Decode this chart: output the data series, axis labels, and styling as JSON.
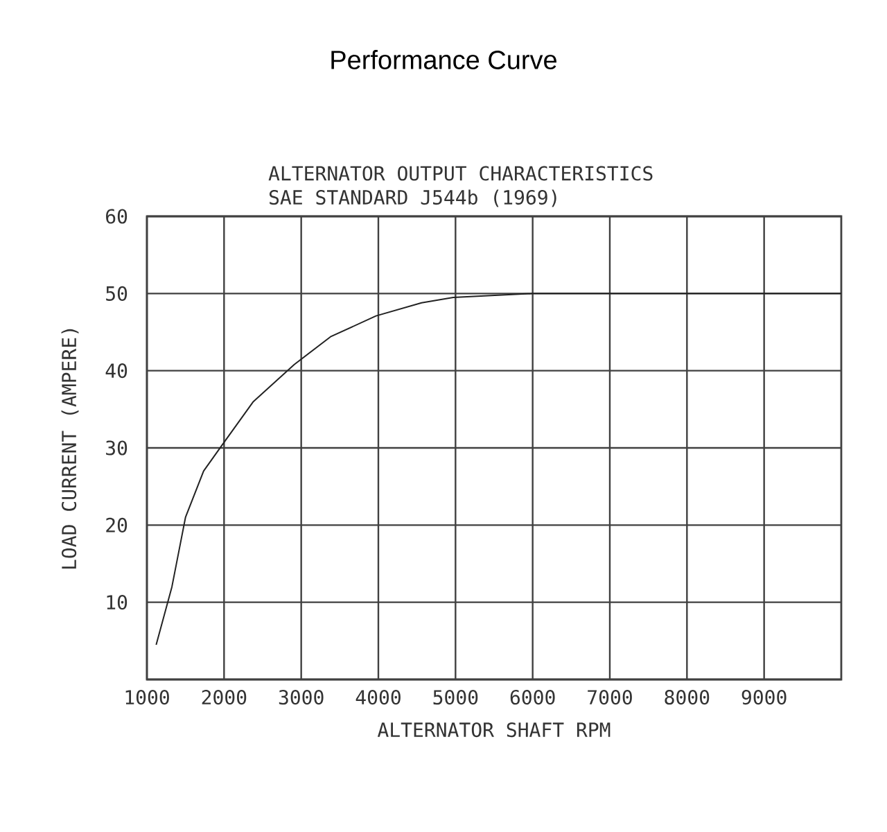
{
  "chart_data": {
    "type": "line",
    "title": "Performance Curve",
    "subtitle": "ALTERNATOR OUTPUT CHARACTERISTICS",
    "annotations": [
      "SAE STANDARD J544b (1969)"
    ],
    "xlabel": "ALTERNATOR SHAFT RPM",
    "ylabel": "LOAD CURRENT (AMPERE)",
    "x": [
      1120,
      1324,
      1500,
      1735,
      1970,
      2380,
      2910,
      3380,
      3970,
      4560,
      4970,
      6000,
      10000
    ],
    "series": [
      {
        "color": "#222222",
        "values": [
          4.5,
          12,
          21,
          27,
          30.3,
          36,
          40.8,
          44.4,
          47.1,
          48.8,
          49.5,
          50,
          50
        ]
      }
    ],
    "xlim": [
      1000,
      10000
    ],
    "ylim": [
      0,
      60
    ],
    "xticks": [
      1000,
      2000,
      3000,
      4000,
      5000,
      6000,
      7000,
      8000,
      9000
    ],
    "yticks": [
      {
        "value": 0,
        "label": null
      },
      10,
      20,
      30,
      40,
      50,
      60
    ],
    "grid": true,
    "marker": "none",
    "line_style": "solid"
  }
}
